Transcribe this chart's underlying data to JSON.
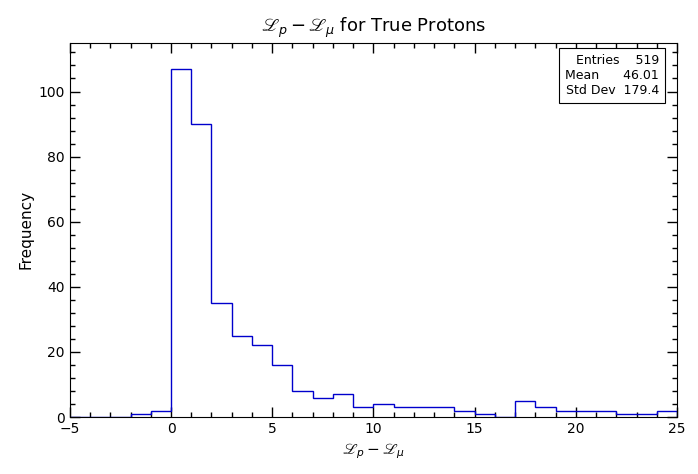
{
  "title": "$\\mathscr{L}_p - \\mathscr{L}_\\mu$ for True Protons",
  "xlabel": "$\\mathscr{L}_p - \\mathscr{L}_\\mu$",
  "ylabel": "Frequency",
  "xlim": [
    -5,
    25
  ],
  "ylim": [
    0,
    115
  ],
  "xticks": [
    -5,
    0,
    5,
    10,
    15,
    20,
    25
  ],
  "yticks": [
    0,
    20,
    40,
    60,
    80,
    100
  ],
  "hist_color": "#0000CC",
  "bin_edges": [
    -5,
    -4,
    -3,
    -2,
    -1,
    0,
    1,
    2,
    3,
    4,
    5,
    6,
    7,
    8,
    9,
    10,
    11,
    12,
    13,
    14,
    15,
    16,
    17,
    18,
    19,
    20,
    21,
    22,
    23,
    24,
    25
  ],
  "bin_heights": [
    0,
    0,
    0,
    1,
    2,
    107,
    90,
    35,
    25,
    22,
    16,
    8,
    6,
    7,
    3,
    4,
    3,
    3,
    3,
    2,
    1,
    0,
    5,
    3,
    2,
    2,
    2,
    1,
    1,
    2
  ],
  "entries": 519,
  "mean": 46.01,
  "std_dev": 179.4,
  "background_color": "#ffffff",
  "line_width": 1.0,
  "figsize": [
    6.98,
    4.74
  ],
  "dpi": 100
}
